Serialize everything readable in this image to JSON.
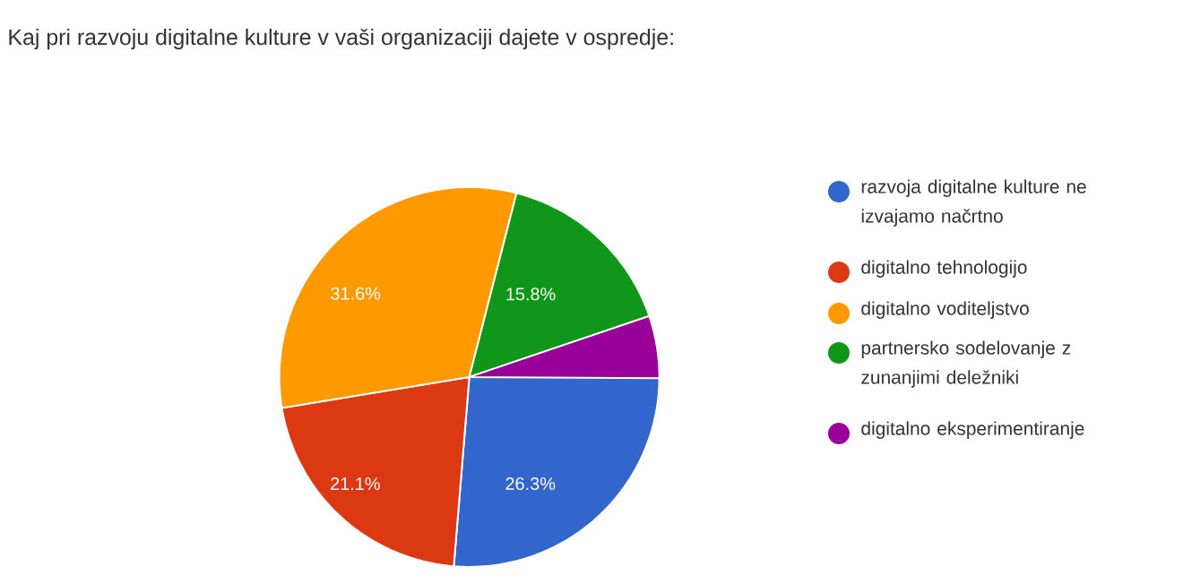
{
  "chart_data": {
    "type": "pie",
    "title": "Kaj pri razvoju digitalne kulture v vaši organizaciji dajete v ospredje:",
    "categories": [
      "razvoja digitalne kulture ne izvajamo načrtno",
      "digitalno tehnologijo",
      "digitalno voditeljstvo",
      "partnersko sodelovanje z zunanjimi deležniki",
      "digitalno eksperimentiranje"
    ],
    "values": [
      26.3,
      21.1,
      31.6,
      15.8,
      5.3
    ],
    "value_labels": [
      "26.3%",
      "21.1%",
      "31.6%",
      "15.8%",
      null
    ],
    "colors": [
      "#3366cc",
      "#dc3912",
      "#ff9900",
      "#109618",
      "#990099"
    ],
    "legend": "right"
  }
}
